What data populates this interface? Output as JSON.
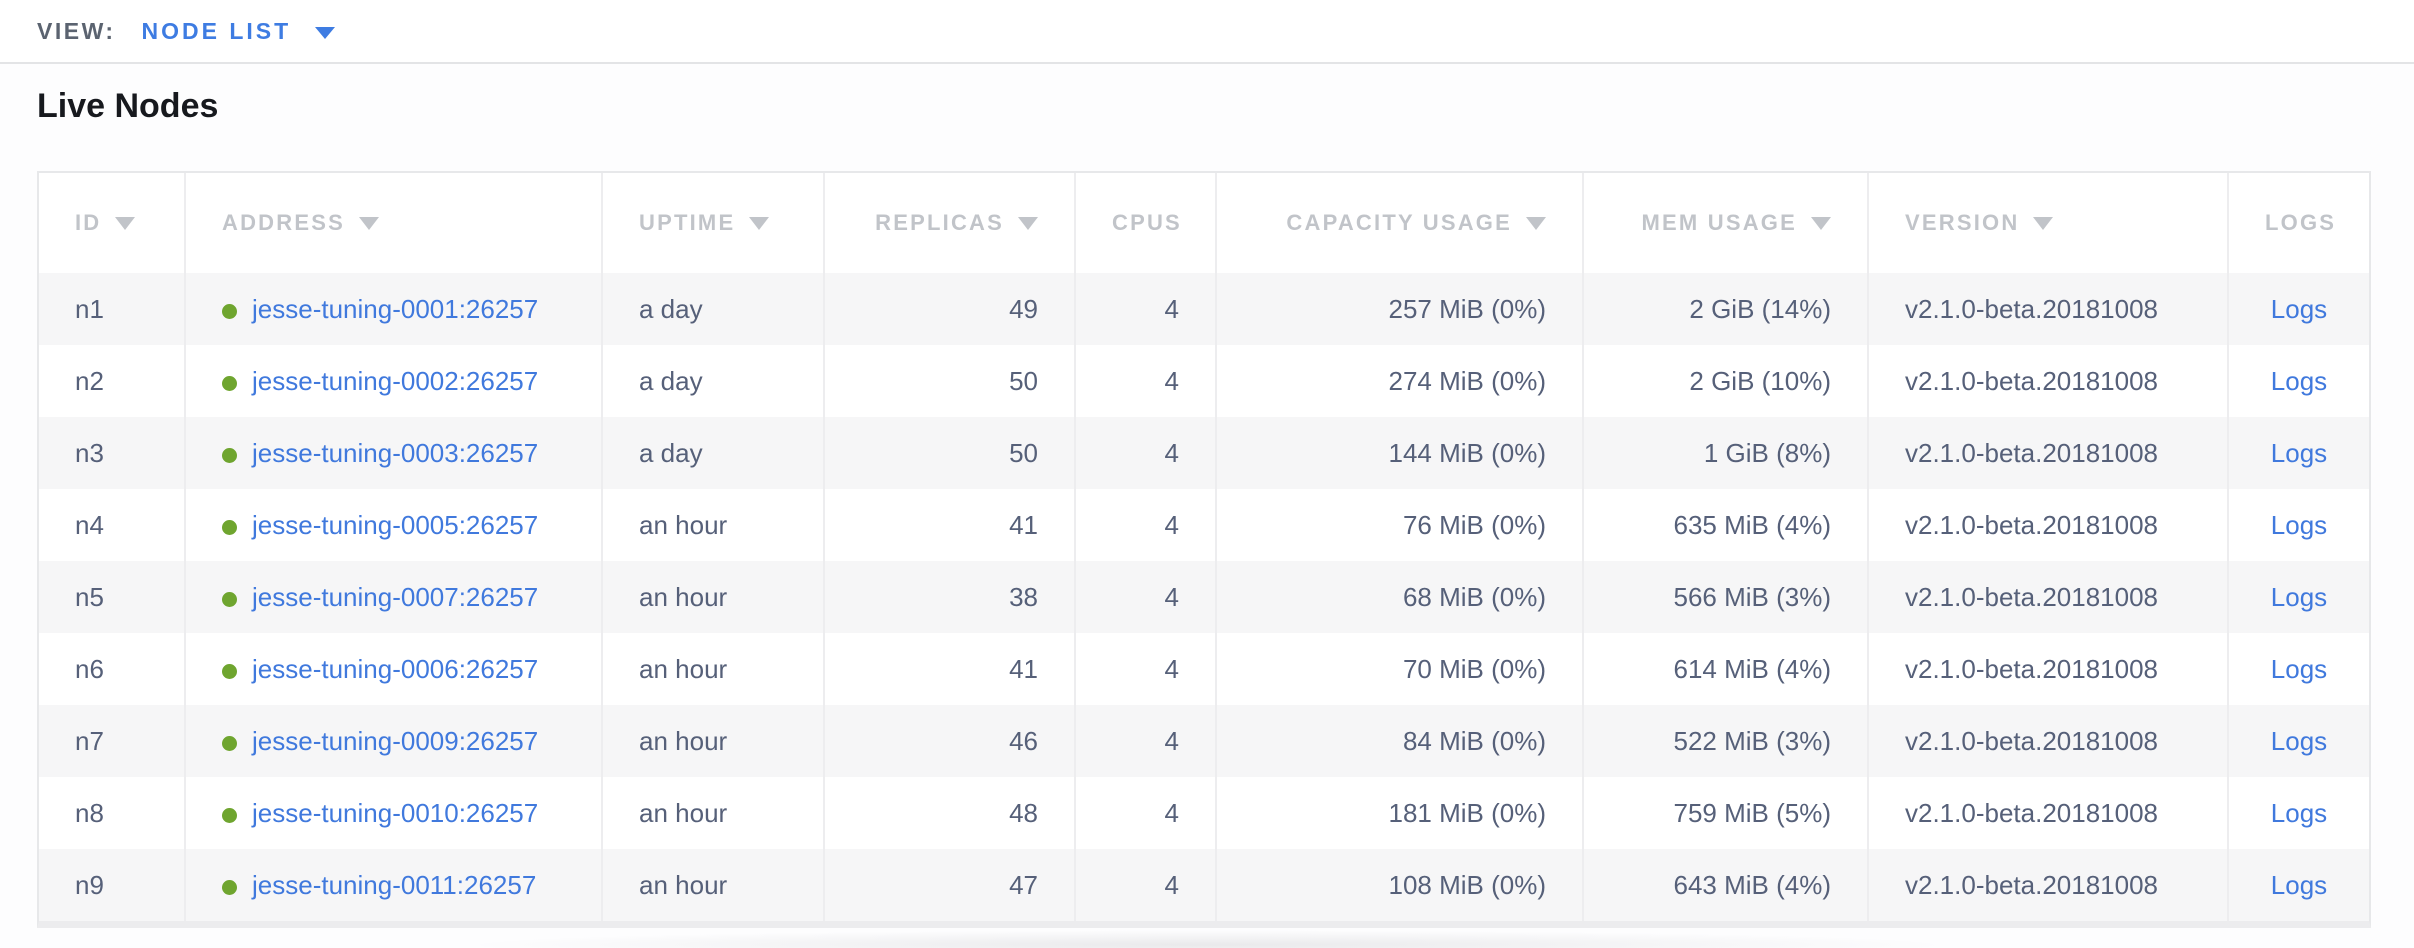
{
  "toolbar": {
    "view_label": "VIEW:",
    "view_value": "NODE LIST"
  },
  "page": {
    "title": "Live Nodes"
  },
  "icons": {
    "sort-desc-icon": "filled down triangle ▼",
    "chevron-down-icon": "filled down triangle ▼",
    "node-status-icon": "green circle ●"
  },
  "colors": {
    "link_blue": "#4079dd",
    "accent_blue": "#3e7ce2",
    "status_green": "#6fa52f",
    "header_gray": "#c1c4c9",
    "cell_text": "#566079",
    "row_stripe": "#f6f6f7",
    "border": "#e7e8ea"
  },
  "table": {
    "columns": [
      {
        "key": "id",
        "label": "ID",
        "sortable": true,
        "align": "left"
      },
      {
        "key": "address",
        "label": "ADDRESS",
        "sortable": true,
        "align": "left"
      },
      {
        "key": "uptime",
        "label": "UPTIME",
        "sortable": true,
        "align": "left"
      },
      {
        "key": "replicas",
        "label": "REPLICAS",
        "sortable": true,
        "align": "right"
      },
      {
        "key": "cpus",
        "label": "CPUS",
        "sortable": false,
        "align": "right"
      },
      {
        "key": "capacity",
        "label": "CAPACITY USAGE",
        "sortable": true,
        "align": "right"
      },
      {
        "key": "mem",
        "label": "MEM USAGE",
        "sortable": true,
        "align": "right"
      },
      {
        "key": "version",
        "label": "VERSION",
        "sortable": true,
        "align": "left"
      },
      {
        "key": "logs",
        "label": "LOGS",
        "sortable": false,
        "align": "center"
      }
    ],
    "rows": [
      {
        "id": "n1",
        "address": "jesse-tuning-0001:26257",
        "uptime": "a day",
        "replicas": "49",
        "cpus": "4",
        "capacity": "257 MiB (0%)",
        "mem": "2 GiB (14%)",
        "version": "v2.1.0-beta.20181008",
        "logs": "Logs"
      },
      {
        "id": "n2",
        "address": "jesse-tuning-0002:26257",
        "uptime": "a day",
        "replicas": "50",
        "cpus": "4",
        "capacity": "274 MiB (0%)",
        "mem": "2 GiB (10%)",
        "version": "v2.1.0-beta.20181008",
        "logs": "Logs"
      },
      {
        "id": "n3",
        "address": "jesse-tuning-0003:26257",
        "uptime": "a day",
        "replicas": "50",
        "cpus": "4",
        "capacity": "144 MiB (0%)",
        "mem": "1 GiB (8%)",
        "version": "v2.1.0-beta.20181008",
        "logs": "Logs"
      },
      {
        "id": "n4",
        "address": "jesse-tuning-0005:26257",
        "uptime": "an hour",
        "replicas": "41",
        "cpus": "4",
        "capacity": "76 MiB (0%)",
        "mem": "635 MiB (4%)",
        "version": "v2.1.0-beta.20181008",
        "logs": "Logs"
      },
      {
        "id": "n5",
        "address": "jesse-tuning-0007:26257",
        "uptime": "an hour",
        "replicas": "38",
        "cpus": "4",
        "capacity": "68 MiB (0%)",
        "mem": "566 MiB (3%)",
        "version": "v2.1.0-beta.20181008",
        "logs": "Logs"
      },
      {
        "id": "n6",
        "address": "jesse-tuning-0006:26257",
        "uptime": "an hour",
        "replicas": "41",
        "cpus": "4",
        "capacity": "70 MiB (0%)",
        "mem": "614 MiB (4%)",
        "version": "v2.1.0-beta.20181008",
        "logs": "Logs"
      },
      {
        "id": "n7",
        "address": "jesse-tuning-0009:26257",
        "uptime": "an hour",
        "replicas": "46",
        "cpus": "4",
        "capacity": "84 MiB (0%)",
        "mem": "522 MiB (3%)",
        "version": "v2.1.0-beta.20181008",
        "logs": "Logs"
      },
      {
        "id": "n8",
        "address": "jesse-tuning-0010:26257",
        "uptime": "an hour",
        "replicas": "48",
        "cpus": "4",
        "capacity": "181 MiB (0%)",
        "mem": "759 MiB (5%)",
        "version": "v2.1.0-beta.20181008",
        "logs": "Logs"
      },
      {
        "id": "n9",
        "address": "jesse-tuning-0011:26257",
        "uptime": "an hour",
        "replicas": "47",
        "cpus": "4",
        "capacity": "108 MiB (0%)",
        "mem": "643 MiB (4%)",
        "version": "v2.1.0-beta.20181008",
        "logs": "Logs"
      }
    ]
  }
}
